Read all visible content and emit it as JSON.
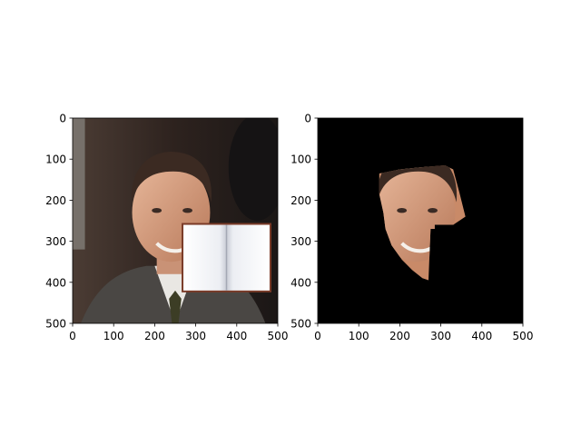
{
  "chart_data": [
    {
      "type": "image",
      "title": "",
      "xlabel": "",
      "ylabel": "",
      "xlim": [
        0,
        500
      ],
      "ylim": [
        500,
        0
      ],
      "xticks": [
        0,
        100,
        200,
        300,
        400,
        500
      ],
      "yticks": [
        0,
        100,
        200,
        300,
        400,
        500
      ],
      "xtick_labels": [
        "0",
        "100",
        "200",
        "300",
        "400",
        "500"
      ],
      "ytick_labels": [
        "0",
        "100",
        "200",
        "300",
        "400",
        "500"
      ],
      "grid": false,
      "content": "portrait photo of a smiling man in a suit; an open book occludes the lower-right part of the face",
      "occluder": {
        "x": [
          270,
          480
        ],
        "y": [
          260,
          420
        ]
      }
    },
    {
      "type": "image",
      "title": "",
      "xlabel": "",
      "ylabel": "",
      "xlim": [
        0,
        500
      ],
      "ylim": [
        500,
        0
      ],
      "xticks": [
        0,
        100,
        200,
        300,
        400,
        500
      ],
      "yticks": [
        0,
        100,
        200,
        300,
        400,
        500
      ],
      "xtick_labels": [
        "0",
        "100",
        "200",
        "300",
        "400",
        "500"
      ],
      "ytick_labels": [
        "0",
        "100",
        "200",
        "300",
        "400",
        "500"
      ],
      "grid": false,
      "content": "segmented face region on black background with the occluded area removed",
      "mask_outline": [
        [
          150,
          135
        ],
        [
          200,
          125
        ],
        [
          250,
          120
        ],
        [
          310,
          115
        ],
        [
          330,
          125
        ],
        [
          345,
          180
        ],
        [
          360,
          240
        ],
        [
          330,
          260
        ],
        [
          285,
          260
        ],
        [
          285,
          270
        ],
        [
          275,
          270
        ],
        [
          270,
          395
        ],
        [
          255,
          390
        ],
        [
          230,
          370
        ],
        [
          205,
          345
        ],
        [
          180,
          310
        ],
        [
          165,
          270
        ],
        [
          160,
          230
        ],
        [
          150,
          185
        ]
      ]
    }
  ]
}
